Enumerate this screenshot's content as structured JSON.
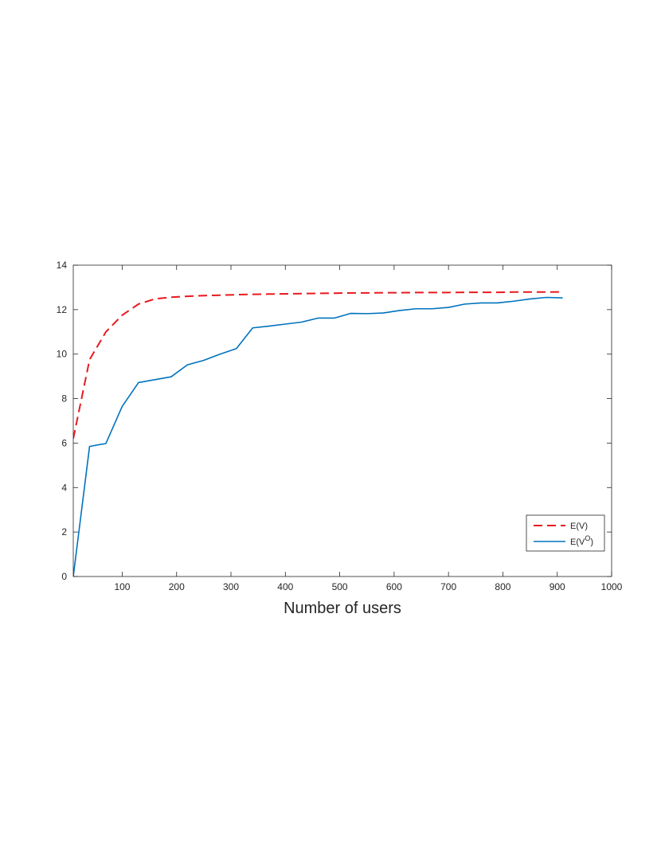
{
  "chart_data": {
    "type": "line",
    "title": "",
    "xlabel": "Number of users",
    "ylabel": "",
    "xlim": [
      10,
      1000
    ],
    "ylim": [
      0,
      14
    ],
    "xticks": [
      100,
      200,
      300,
      400,
      500,
      600,
      700,
      800,
      900,
      1000
    ],
    "yticks": [
      0,
      2,
      4,
      6,
      8,
      10,
      12,
      14
    ],
    "grid": false,
    "legend_position": "bottom-right",
    "series": [
      {
        "name": "E(V)",
        "label_main": "E(V)",
        "label_sup": "",
        "label_tail": "",
        "color": "#e8191f",
        "style": "dashed",
        "x": [
          10,
          40,
          70,
          100,
          130,
          160,
          190,
          220,
          250,
          280,
          310,
          340,
          370,
          400,
          430,
          460,
          490,
          520,
          550,
          580,
          610,
          640,
          670,
          700,
          730,
          760,
          790,
          820,
          850,
          880,
          910
        ],
        "y": [
          6.2,
          9.75,
          11.0,
          11.75,
          12.25,
          12.48,
          12.56,
          12.6,
          12.63,
          12.65,
          12.67,
          12.69,
          12.7,
          12.71,
          12.72,
          12.73,
          12.74,
          12.75,
          12.75,
          12.76,
          12.76,
          12.77,
          12.77,
          12.77,
          12.78,
          12.78,
          12.78,
          12.79,
          12.79,
          12.79,
          12.8
        ]
      },
      {
        "name": "E(V^O)",
        "label_main": "E(V",
        "label_sup": "O",
        "label_tail": ")",
        "color": "#0072bd",
        "style": "solid",
        "x": [
          10,
          40,
          70,
          100,
          130,
          160,
          190,
          220,
          250,
          280,
          310,
          340,
          370,
          400,
          430,
          460,
          490,
          520,
          550,
          580,
          610,
          640,
          670,
          700,
          730,
          760,
          790,
          820,
          850,
          880,
          910
        ],
        "y": [
          0,
          5.85,
          5.98,
          7.65,
          8.72,
          8.85,
          8.98,
          9.52,
          9.72,
          10.0,
          10.25,
          11.18,
          11.26,
          11.35,
          11.44,
          11.62,
          11.62,
          11.83,
          11.82,
          11.85,
          11.96,
          12.04,
          12.04,
          12.1,
          12.25,
          12.3,
          12.3,
          12.38,
          12.48,
          12.55,
          12.53
        ]
      }
    ]
  }
}
